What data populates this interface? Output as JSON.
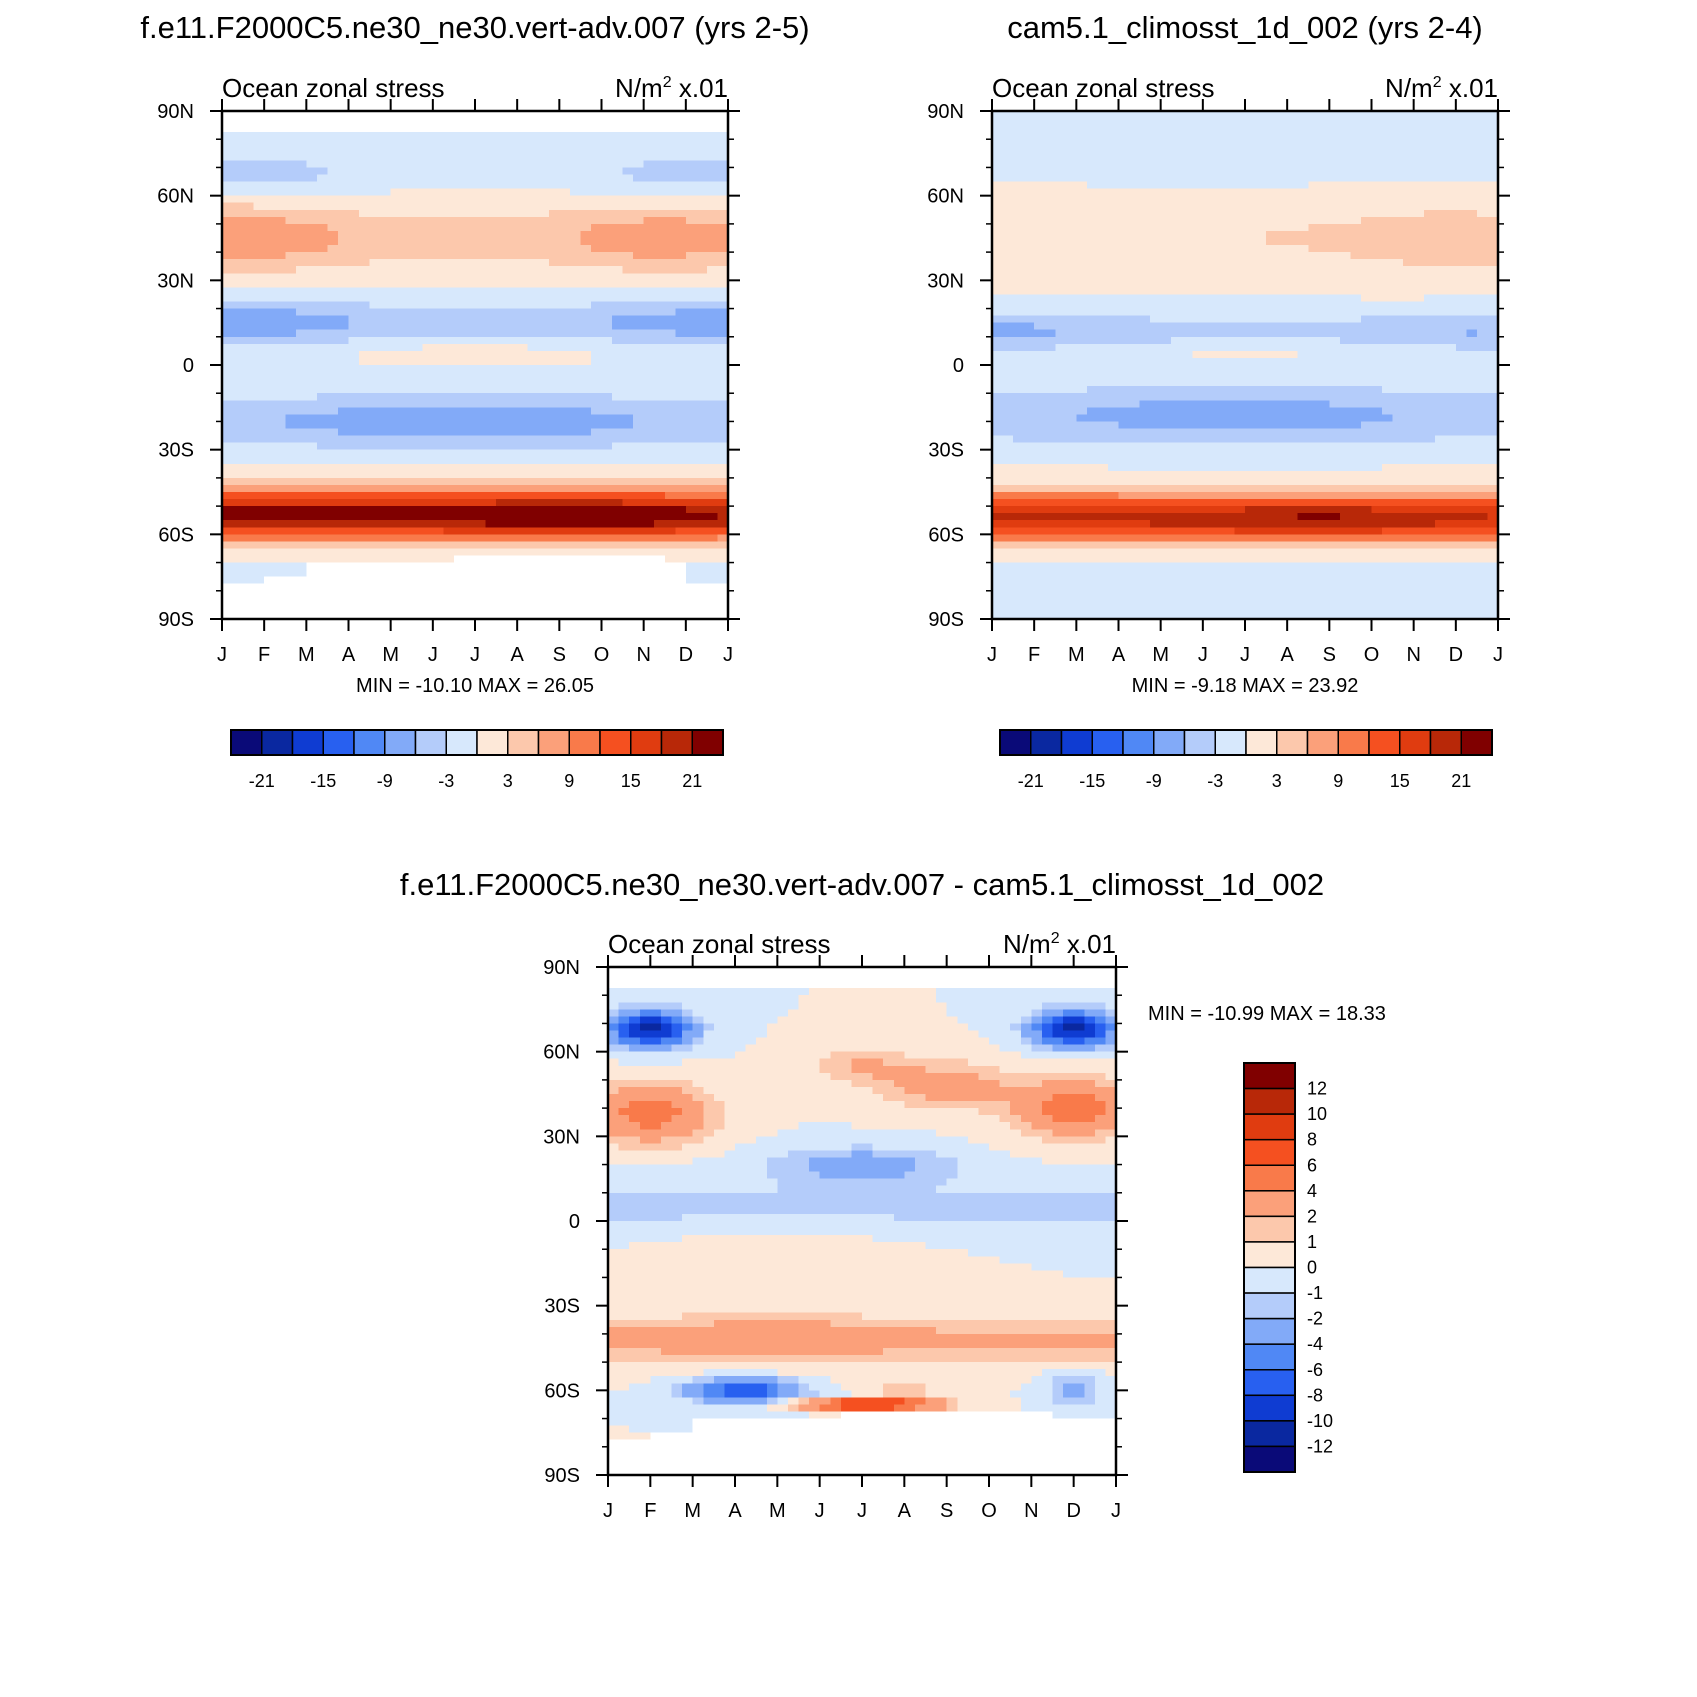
{
  "charts": [
    {
      "id": "model",
      "title": "f.e11.F2000C5.ne30_ne30.vert-adv.007 (yrs 2-5)",
      "left_label": "Ocean zonal stress",
      "right_label_base": "N/m",
      "right_label_sup": "2",
      "right_label_tail": " x.01",
      "stats": "MIN = -10.10 MAX =  26.05",
      "variant": "model"
    },
    {
      "id": "control",
      "title": "cam5.1_climosst_1d_002 (yrs 2-4)",
      "left_label": "Ocean zonal stress",
      "right_label_base": "N/m",
      "right_label_sup": "2",
      "right_label_tail": " x.01",
      "stats": "MIN =  -9.18 MAX =  23.92",
      "variant": "control"
    },
    {
      "id": "diff",
      "title": "f.e11.F2000C5.ne30_ne30.vert-adv.007 - cam5.1_climosst_1d_002",
      "left_label": "Ocean zonal stress",
      "right_label_base": "N/m",
      "right_label_sup": "2",
      "right_label_tail": " x.01",
      "stats": "MIN = -10.99 MAX =  18.33",
      "variant": "diff"
    }
  ],
  "chart_data": {
    "type": "heatmap",
    "x_tick_labels": [
      "J",
      "F",
      "M",
      "A",
      "M",
      "J",
      "J",
      "A",
      "S",
      "O",
      "N",
      "D",
      "J"
    ],
    "y_tick_labels": [
      "90N",
      "60N",
      "30N",
      "0",
      "30S",
      "60S",
      "90S"
    ],
    "y_values": [
      90,
      60,
      30,
      0,
      -30,
      -60,
      -90
    ],
    "abs_colorbar": {
      "levels": [
        -24,
        -21,
        -18,
        -15,
        -12,
        -9,
        -6,
        -3,
        0,
        3,
        6,
        9,
        12,
        15,
        18,
        21,
        24
      ],
      "tick_labels": [
        "-21",
        "-15",
        "-9",
        "-3",
        "3",
        "9",
        "15",
        "21"
      ],
      "colors": [
        "#0a0a78",
        "#0a28a0",
        "#0f3cd2",
        "#2860f0",
        "#5088f5",
        "#82aaf8",
        "#b4ccfa",
        "#d7e8fc",
        "#fde8d8",
        "#fcc8ac",
        "#fba07a",
        "#f97a4a",
        "#f55020",
        "#e03c10",
        "#b82808",
        "#800000"
      ]
    },
    "diff_colorbar": {
      "levels": [
        -14,
        -12,
        -10,
        -8,
        -6,
        -4,
        -2,
        -1,
        0,
        1,
        2,
        4,
        6,
        8,
        10,
        12,
        14
      ],
      "tick_labels": [
        "12",
        "10",
        "8",
        "6",
        "4",
        "2",
        "1",
        "0",
        "-1",
        "-2",
        "-4",
        "-6",
        "-8",
        "-10",
        "-12"
      ],
      "colors": [
        "#0a0a78",
        "#0a28a0",
        "#0f3cd2",
        "#2860f0",
        "#5088f5",
        "#82aaf8",
        "#b4ccfa",
        "#d7e8fc",
        "#fde8d8",
        "#fcc8ac",
        "#fba07a",
        "#f97a4a",
        "#f55020",
        "#e03c10",
        "#b82808",
        "#800000"
      ]
    }
  }
}
